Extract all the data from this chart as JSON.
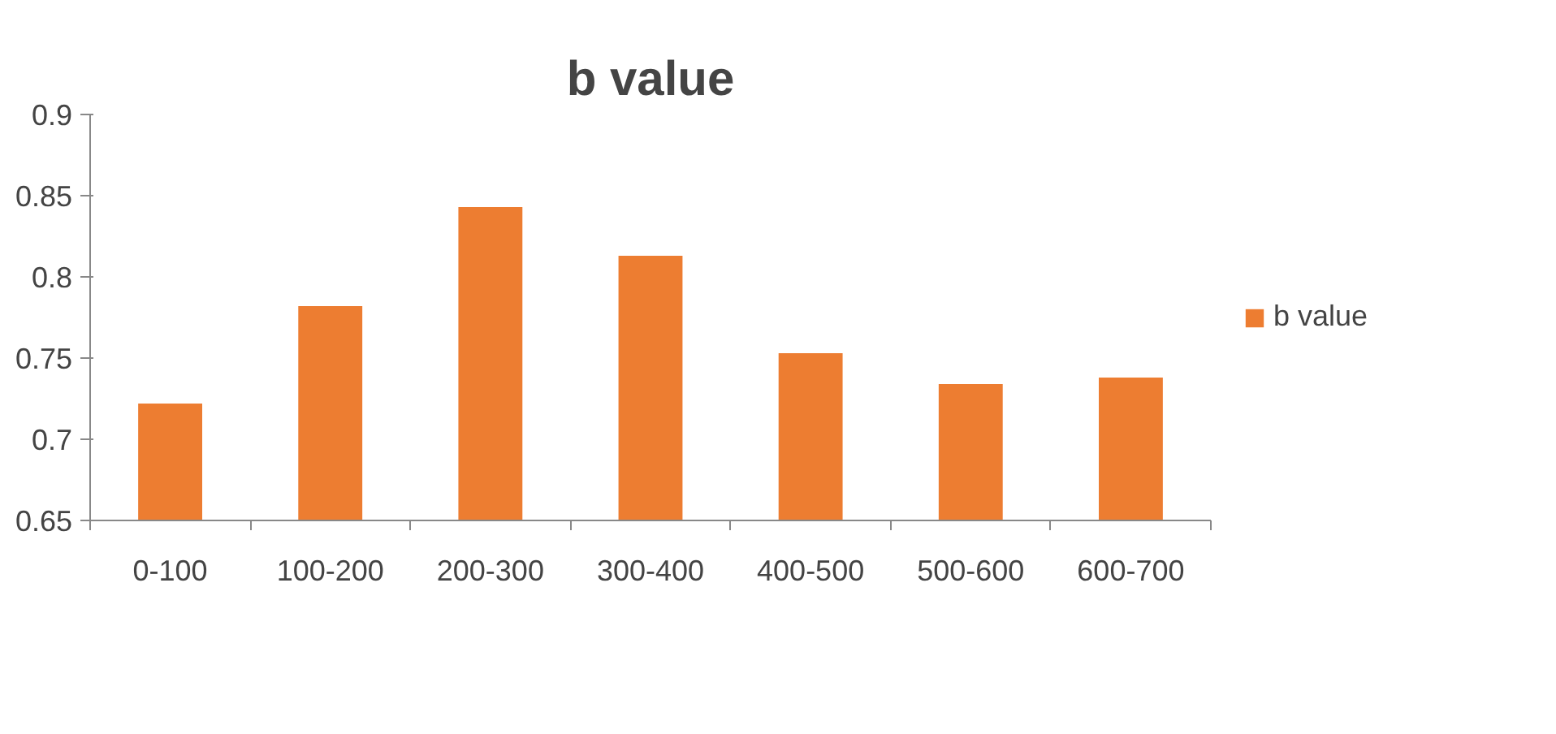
{
  "chart_data": {
    "type": "bar",
    "title": "b value",
    "categories": [
      "0-100",
      "100-200",
      "200-300",
      "300-400",
      "400-500",
      "500-600",
      "600-700"
    ],
    "series": [
      {
        "name": "b value",
        "color": "#ed7d31",
        "values": [
          0.722,
          0.782,
          0.843,
          0.813,
          0.753,
          0.734,
          0.738
        ]
      }
    ],
    "ylim": [
      0.65,
      0.9
    ],
    "yticks": [
      0.65,
      0.7,
      0.75,
      0.8,
      0.85,
      0.9
    ],
    "legend": "right",
    "grid": false
  }
}
